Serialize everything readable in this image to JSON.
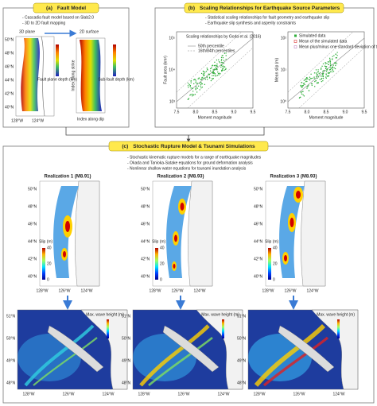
{
  "panel_a": {
    "label": "(a)",
    "title": "Fault Model",
    "bullets": [
      "- Cascadia fault model based on Slab2.0",
      "- 3D to 2D fault mapping"
    ],
    "plane_3d": "3D plane",
    "surface_2d": "2D surface",
    "depth_legend": "Fault plane depth (km)",
    "subfault_legend": "Sub-fault depth (km)",
    "y_label": "Index along strike",
    "x_label": "Index along dip",
    "lat_labels": [
      "50°N",
      "48°N",
      "46°N",
      "44°N",
      "42°N",
      "40°N"
    ],
    "lon_labels": [
      "128°W",
      "124°W"
    ]
  },
  "panel_b": {
    "label": "(b)",
    "title": "Scaling Relationships for Earthquake Source Parameters",
    "bullets": [
      "- Statistical scaling relationships for fault geometry and earthquake slip",
      "- Earthquake slip synthesis and asperity constraints"
    ],
    "left_plot": {
      "y_label": "Fault area (km²)",
      "x_label": "Moment magnitude",
      "x_ticks": [
        "7.5",
        "8.0",
        "8.5",
        "9.0",
        "9.5"
      ],
      "y_ticks": [
        "10⁵",
        "10⁴",
        "10³"
      ],
      "legend_title": "Scaling relationships by Goda et al. (2016)",
      "legend": [
        "50th percentile",
        "16th/84th percentiles"
      ]
    },
    "right_plot": {
      "y_label": "Mean slip (m)",
      "x_label": "Moment magnitude",
      "x_ticks": [
        "7.5",
        "8.0",
        "8.5",
        "9.0",
        "9.5"
      ],
      "y_ticks": [
        "10²",
        "10¹",
        "10⁰"
      ],
      "legend": [
        "Simulated data",
        "Mean of the simulated data",
        "Mean plus/minus one standard deviation of the simulated data"
      ]
    }
  },
  "panel_c": {
    "label": "(c)",
    "title": "Stochastic Rupture Model & Tsunami Simulations",
    "bullets": [
      "- Stochastic kinematic rupture models for a range of earthquake magnitudes",
      "- Okada and Tanioka-Satake equations for ground deformation analysis",
      "- Nonlinear shallow water equations for tsunami inundation analysis"
    ],
    "realizations": [
      "Realization 1 (M8.91)",
      "Realization 2 (M8.93)",
      "Realization 3 (M8.93)"
    ],
    "slip_label": "Slip (m)",
    "slip_ticks": [
      "40",
      "20",
      "0"
    ],
    "lat_labels": [
      "50°N",
      "48°N",
      "46°N",
      "44°N",
      "42°N",
      "40°N"
    ],
    "lon_labels": [
      "128°W",
      "126°W",
      "124°W"
    ],
    "wave_label": "Max. wave height (m)",
    "wave_lat_labels": [
      "51°N",
      "50°N",
      "49°N",
      "48°N"
    ],
    "wave_lon_labels": [
      "128°W",
      "126°W",
      "124°W"
    ]
  }
}
